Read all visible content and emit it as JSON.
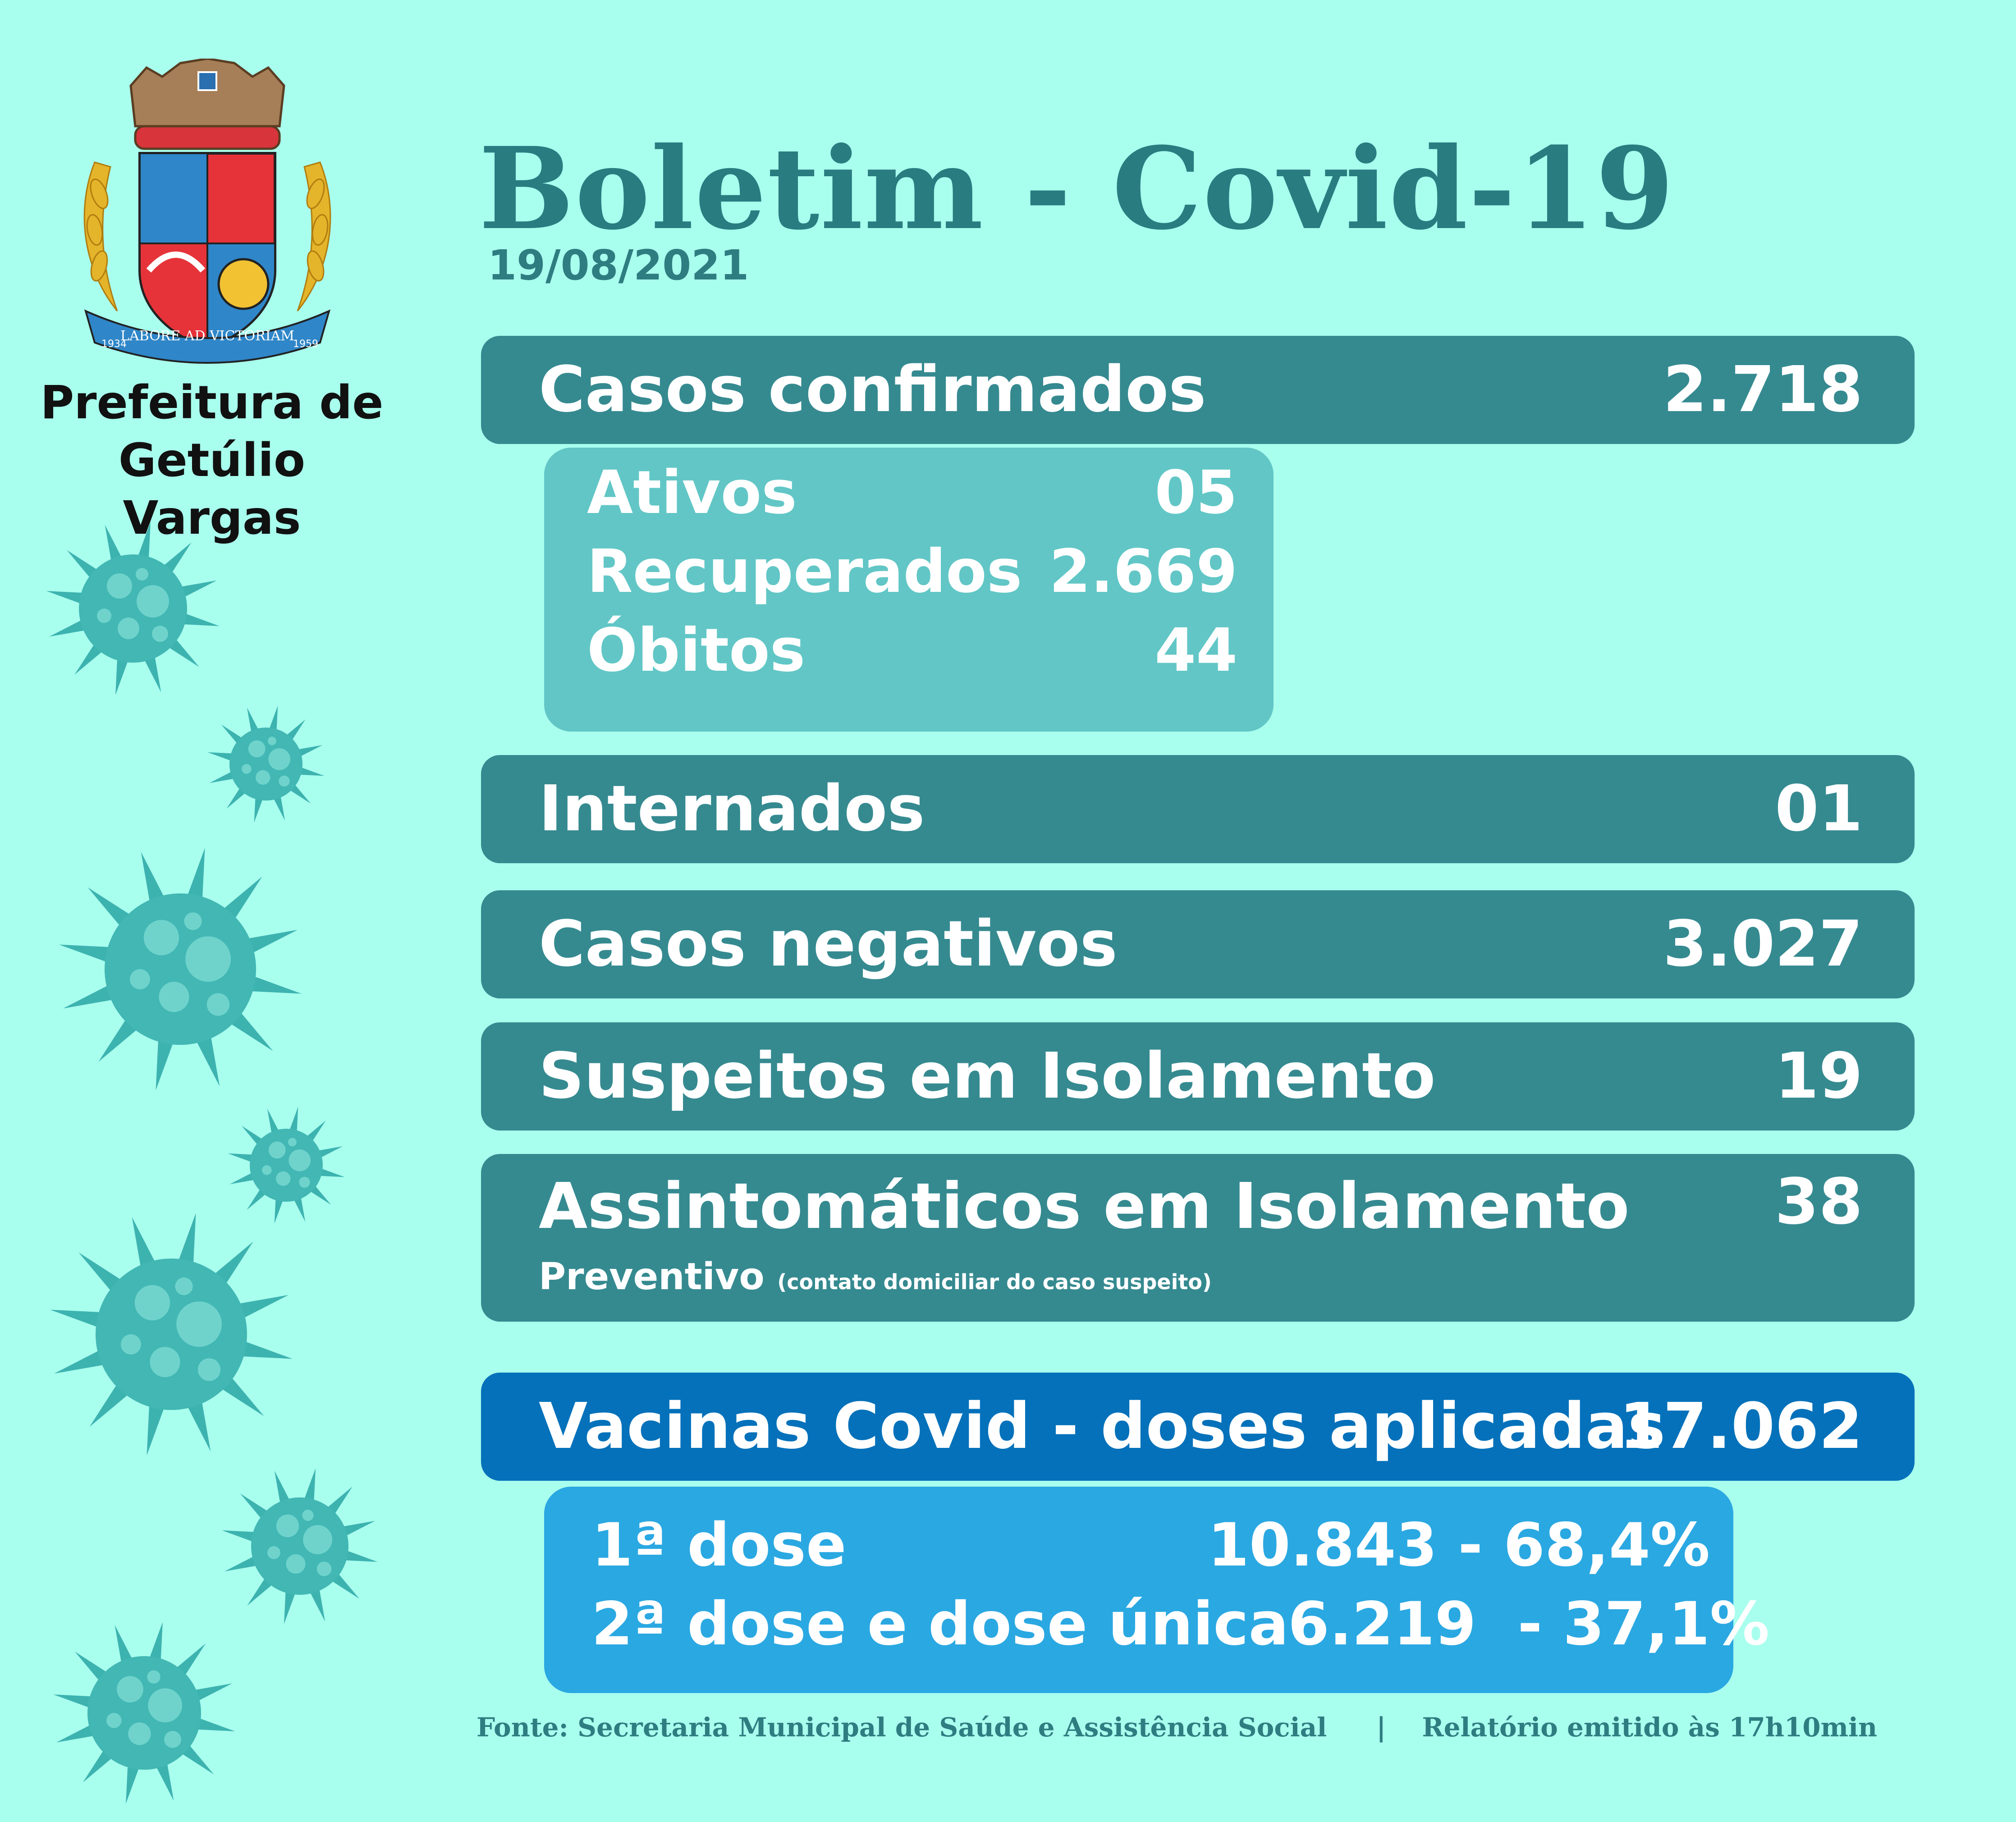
{
  "header": {
    "title": "Boletim - Covid-19",
    "date": "19/08/2021"
  },
  "municipality": {
    "name_line1": "Prefeitura de",
    "name_line2": "Getúlio Vargas",
    "crest_motto": "LABORE AD VICTORIAM",
    "crest_year_left": "1934",
    "crest_year_right": "1959"
  },
  "stats": {
    "confirmed": {
      "label": "Casos confirmados",
      "value": "2.718"
    },
    "active": {
      "label": "Ativos",
      "value": "05"
    },
    "recovered": {
      "label": "Recuperados",
      "value": "2.669"
    },
    "deaths": {
      "label": "Óbitos",
      "value": "44"
    },
    "hospitalized": {
      "label": "Internados",
      "value": "01"
    },
    "negative": {
      "label": "Casos negativos",
      "value": "3.027"
    },
    "suspected": {
      "label": "Suspeitos em Isolamento",
      "value": "19"
    },
    "asymptomatic": {
      "label": "Assintomáticos em Isolamento",
      "sublabel": "Preventivo",
      "note": "(contato domiciliar do caso suspeito)",
      "value": "38"
    }
  },
  "vaccines": {
    "label": "Vacinas Covid - doses aplicadas",
    "value": "17.062",
    "first_dose": {
      "label": "1ª dose",
      "value": "10.843 - 68,4%"
    },
    "second_dose": {
      "label": "2ª dose e dose única",
      "value": "6.219  - 37,1%"
    }
  },
  "footer": {
    "source": "Fonte: Secretaria Municipal de Saúde e Assistência Social",
    "separator": "|",
    "report": "Relatório emitido às 17h10min"
  },
  "colors": {
    "background": "#a9ffee",
    "bar": "#358a90",
    "sub_panel": "#62c6c6",
    "vaccine_bar": "#0471ba",
    "vaccine_panel": "#2aa8e2",
    "title": "#297c80"
  },
  "decorations": [
    "virus-icon",
    "virus-icon",
    "virus-icon",
    "virus-icon",
    "virus-icon",
    "virus-icon",
    "virus-icon"
  ]
}
